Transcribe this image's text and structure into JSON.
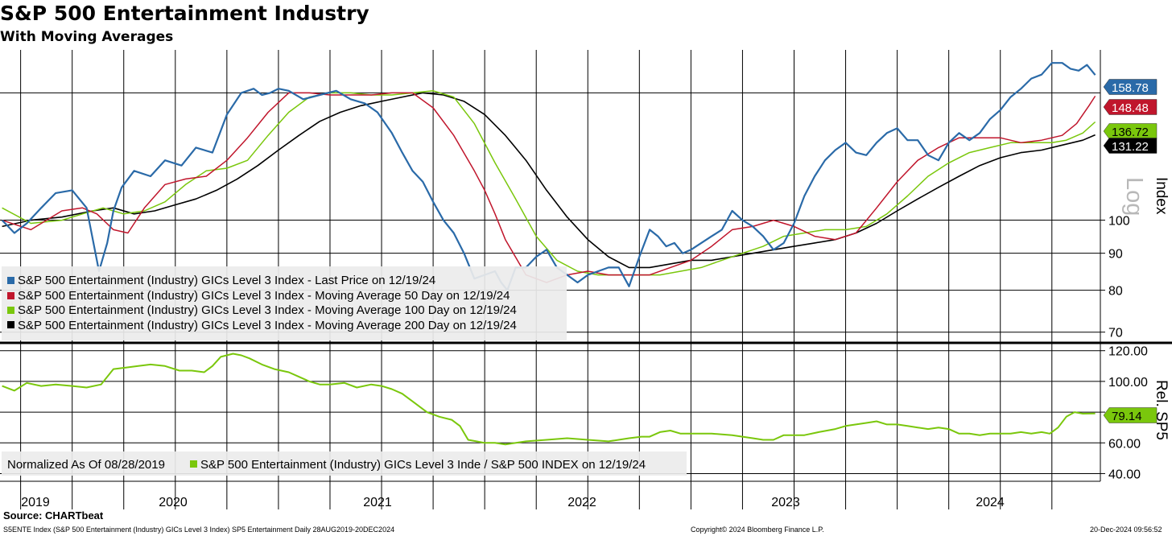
{
  "title": "S&P 500 Entertainment Industry",
  "subtitle": "With Moving Averages",
  "source": "Source: CHARTbeat",
  "footer": {
    "left": "S5ENTE Index (S&P 500 Entertainment (Industry) GICs Level 3 Index) SP5 Entertainment  Daily 28AUG2019-20DEC2024",
    "center": "Copyright© 2024 Bloomberg Finance L.P.",
    "right": "20-Dec-2024 09:56:52"
  },
  "colors": {
    "price": "#2a6aa8",
    "ma50": "#c0162c",
    "ma100": "#7ac70c",
    "ma200": "#000000"
  },
  "chart_data": [
    {
      "type": "line",
      "panel": "upper",
      "scale": "log",
      "axis_title": "Index",
      "scale_label": "Log",
      "y_ticks": [
        70,
        80,
        90,
        100
      ],
      "ylim": [
        68,
        172
      ],
      "x_labels": [
        "2019",
        "2020",
        "2021",
        "2022",
        "2023",
        "2024"
      ],
      "series": [
        {
          "key": "price",
          "name": "S&P 500 Entertainment (Industry) GICs Level 3 Index - Last Price on 12/19/24",
          "last_value": "158.78",
          "x": [
            2019.66,
            2019.72,
            2019.78,
            2019.85,
            2019.92,
            2020.0,
            2020.07,
            2020.13,
            2020.17,
            2020.2,
            2020.24,
            2020.3,
            2020.38,
            2020.45,
            2020.53,
            2020.6,
            2020.68,
            2020.75,
            2020.82,
            2020.88,
            2020.92,
            2020.96,
            2021.0,
            2021.05,
            2021.12,
            2021.2,
            2021.28,
            2021.35,
            2021.42,
            2021.48,
            2021.55,
            2021.6,
            2021.65,
            2021.7,
            2021.75,
            2021.8,
            2021.85,
            2021.9,
            2021.95,
            2022.0,
            2022.05,
            2022.08,
            2022.11,
            2022.15,
            2022.2,
            2022.25,
            2022.3,
            2022.35,
            2022.4,
            2022.45,
            2022.5,
            2022.55,
            2022.6,
            2022.65,
            2022.7,
            2022.75,
            2022.8,
            2022.84,
            2022.88,
            2022.92,
            2022.96,
            2023.0,
            2023.05,
            2023.1,
            2023.15,
            2023.2,
            2023.25,
            2023.3,
            2023.35,
            2023.4,
            2023.45,
            2023.5,
            2023.55,
            2023.6,
            2023.65,
            2023.7,
            2023.75,
            2023.8,
            2023.85,
            2023.9,
            2023.95,
            2024.0,
            2024.05,
            2024.1,
            2024.15,
            2024.2,
            2024.25,
            2024.3,
            2024.35,
            2024.4,
            2024.45,
            2024.5,
            2024.55,
            2024.6,
            2024.65,
            2024.7,
            2024.75,
            2024.8,
            2024.84,
            2024.88,
            2024.92,
            2024.96
          ],
          "y": [
            100,
            96,
            99,
            104,
            109,
            110,
            104,
            85,
            93,
            103,
            111,
            117,
            115,
            121,
            119,
            126,
            124,
            140,
            150,
            152,
            149,
            150,
            152,
            151,
            147,
            149,
            151,
            147,
            145,
            141,
            132,
            124,
            117,
            113,
            106,
            100,
            96,
            90,
            83,
            84,
            85,
            82,
            80,
            86,
            86,
            89,
            91,
            86,
            84,
            82,
            84,
            85,
            86,
            86,
            81,
            89,
            97,
            95,
            92,
            93,
            90,
            91,
            93,
            95,
            97,
            103,
            100,
            98,
            95,
            91,
            93,
            99,
            108,
            115,
            121,
            125,
            128,
            124,
            123,
            128,
            132,
            134,
            129,
            129,
            123,
            121,
            128,
            132,
            129,
            132,
            138,
            142,
            148,
            152,
            157,
            159,
            165,
            165,
            162,
            161,
            164,
            158.78
          ]
        },
        {
          "key": "ma50",
          "name": "S&P 500 Entertainment (Industry) GICs Level 3 Index - Moving Average 50 Day on 12/19/24",
          "last_value": "148.48",
          "x": [
            2019.66,
            2019.8,
            2019.95,
            2020.05,
            2020.12,
            2020.2,
            2020.27,
            2020.35,
            2020.45,
            2020.55,
            2020.65,
            2020.75,
            2020.85,
            2020.95,
            2021.05,
            2021.15,
            2021.25,
            2021.35,
            2021.45,
            2021.55,
            2021.65,
            2021.75,
            2021.85,
            2021.95,
            2022.0,
            2022.05,
            2022.1,
            2022.2,
            2022.3,
            2022.4,
            2022.5,
            2022.6,
            2022.7,
            2022.8,
            2022.9,
            2023.0,
            2023.1,
            2023.2,
            2023.3,
            2023.4,
            2023.5,
            2023.6,
            2023.7,
            2023.8,
            2023.9,
            2024.0,
            2024.1,
            2024.2,
            2024.3,
            2024.4,
            2024.5,
            2024.6,
            2024.7,
            2024.8,
            2024.87,
            2024.93,
            2024.96
          ],
          "y": [
            100,
            97,
            103,
            104,
            102,
            97,
            96,
            104,
            112,
            114,
            115,
            121,
            130,
            141,
            150,
            150,
            149,
            149,
            149,
            150,
            150,
            143,
            131,
            117,
            110,
            102,
            94,
            84,
            82,
            84,
            85,
            84,
            84,
            84,
            86,
            88,
            92,
            97,
            98,
            100,
            98,
            95,
            94,
            96,
            104,
            113,
            121,
            126,
            130,
            130,
            130,
            128,
            129,
            131,
            136,
            144,
            148.48
          ]
        },
        {
          "key": "ma100",
          "name": "S&P 500 Entertainment (Industry) GICs Level 3 Index - Moving Average 100 Day on 12/19/24",
          "last_value": "136.72",
          "x": [
            2019.66,
            2019.8,
            2019.95,
            2020.05,
            2020.15,
            2020.25,
            2020.35,
            2020.45,
            2020.55,
            2020.65,
            2020.75,
            2020.85,
            2020.95,
            2021.05,
            2021.15,
            2021.25,
            2021.35,
            2021.45,
            2021.55,
            2021.65,
            2021.75,
            2021.85,
            2021.95,
            2022.05,
            2022.15,
            2022.25,
            2022.35,
            2022.45,
            2022.55,
            2022.65,
            2022.75,
            2022.85,
            2022.95,
            2023.05,
            2023.15,
            2023.25,
            2023.35,
            2023.45,
            2023.55,
            2023.65,
            2023.75,
            2023.85,
            2023.95,
            2024.05,
            2024.15,
            2024.25,
            2024.35,
            2024.45,
            2024.55,
            2024.65,
            2024.75,
            2024.82,
            2024.9,
            2024.96
          ],
          "y": [
            104,
            99,
            100,
            102,
            104,
            102,
            103,
            106,
            112,
            117,
            118,
            121,
            131,
            141,
            148,
            150,
            150,
            149,
            149,
            150,
            151,
            148,
            136,
            120,
            107,
            95,
            88,
            85,
            84,
            84,
            84,
            84,
            85,
            86,
            88,
            90,
            92,
            95,
            96,
            97,
            97,
            98,
            102,
            108,
            115,
            120,
            124,
            126,
            128,
            128,
            128,
            129,
            132,
            136.72
          ]
        },
        {
          "key": "ma200",
          "name": "S&P 500 Entertainment (Industry) GICs Level 3 Index - Moving Average 200 Day on 12/19/24",
          "last_value": "131.22",
          "x": [
            2019.66,
            2019.8,
            2019.95,
            2020.1,
            2020.2,
            2020.3,
            2020.4,
            2020.5,
            2020.6,
            2020.7,
            2020.8,
            2020.9,
            2021.0,
            2021.1,
            2021.2,
            2021.3,
            2021.4,
            2021.5,
            2021.6,
            2021.7,
            2021.8,
            2021.9,
            2022.0,
            2022.1,
            2022.2,
            2022.3,
            2022.4,
            2022.5,
            2022.6,
            2022.7,
            2022.8,
            2022.9,
            2023.0,
            2023.1,
            2023.2,
            2023.3,
            2023.4,
            2023.5,
            2023.6,
            2023.7,
            2023.8,
            2023.9,
            2024.0,
            2024.1,
            2024.2,
            2024.3,
            2024.4,
            2024.5,
            2024.6,
            2024.7,
            2024.8,
            2024.9,
            2024.96
          ],
          "y": [
            98,
            100,
            101,
            103,
            104,
            102,
            103,
            105,
            107,
            110,
            114,
            119,
            125,
            131,
            137,
            141,
            144,
            146,
            148,
            150,
            149,
            146,
            140,
            131,
            121,
            110,
            101,
            94,
            89,
            86,
            86,
            87,
            88,
            88,
            89,
            90,
            91,
            92,
            93,
            94,
            96,
            99,
            103,
            107,
            111,
            115,
            119,
            122,
            124,
            125,
            127,
            129,
            131.22
          ]
        }
      ]
    },
    {
      "type": "line",
      "panel": "lower",
      "axis_title": "Rel. SP5",
      "y_ticks": [
        "40.00",
        "60.00",
        "80.00",
        "100.00",
        "120.00"
      ],
      "ylim": [
        35,
        123
      ],
      "normalized_label": "Normalized As Of 08/28/2019",
      "series": [
        {
          "key": "ratio",
          "name": "S&P 500 Entertainment (Industry) GICs Level 3 Inde / S&P 500 INDEX on 12/19/24",
          "last_value": "79.14",
          "x": [
            2019.66,
            2019.72,
            2019.78,
            2019.85,
            2019.92,
            2020.0,
            2020.07,
            2020.14,
            2020.2,
            2020.26,
            2020.32,
            2020.38,
            2020.45,
            2020.52,
            2020.58,
            2020.64,
            2020.68,
            2020.72,
            2020.78,
            2020.82,
            2020.86,
            2020.92,
            2020.98,
            2021.05,
            2021.1,
            2021.15,
            2021.2,
            2021.25,
            2021.32,
            2021.38,
            2021.45,
            2021.5,
            2021.55,
            2021.6,
            2021.66,
            2021.72,
            2021.78,
            2021.84,
            2021.88,
            2021.92,
            2021.96,
            2022.0,
            2022.05,
            2022.1,
            2022.2,
            2022.3,
            2022.4,
            2022.5,
            2022.6,
            2022.7,
            2022.76,
            2022.8,
            2022.85,
            2022.9,
            2022.95,
            2023.0,
            2023.1,
            2023.2,
            2023.25,
            2023.3,
            2023.35,
            2023.4,
            2023.45,
            2023.5,
            2023.55,
            2023.62,
            2023.7,
            2023.75,
            2023.8,
            2023.85,
            2023.9,
            2023.95,
            2024.0,
            2024.05,
            2024.1,
            2024.15,
            2024.2,
            2024.25,
            2024.3,
            2024.35,
            2024.4,
            2024.45,
            2024.5,
            2024.55,
            2024.6,
            2024.65,
            2024.7,
            2024.74,
            2024.78,
            2024.82,
            2024.86,
            2024.9,
            2024.96
          ],
          "y": [
            97,
            94,
            99,
            97,
            98,
            97,
            96,
            98,
            108,
            109,
            110,
            111,
            110,
            107,
            107,
            106,
            110,
            116,
            118,
            117,
            115,
            111,
            108,
            106,
            103,
            100,
            98,
            98,
            99,
            96,
            98,
            97,
            95,
            92,
            86,
            80,
            77,
            75,
            71,
            62,
            61,
            60,
            60,
            59,
            61,
            62,
            63,
            62,
            61,
            63,
            64,
            64,
            67,
            68,
            66,
            66,
            66,
            65,
            64,
            63,
            62,
            62,
            65,
            65,
            65,
            67,
            69,
            71,
            72,
            73,
            74,
            72,
            72,
            71,
            70,
            69,
            70,
            69,
            66,
            66,
            65,
            66,
            66,
            66,
            67,
            66,
            67,
            66,
            70,
            77,
            80,
            79,
            79.14
          ]
        }
      ]
    }
  ]
}
